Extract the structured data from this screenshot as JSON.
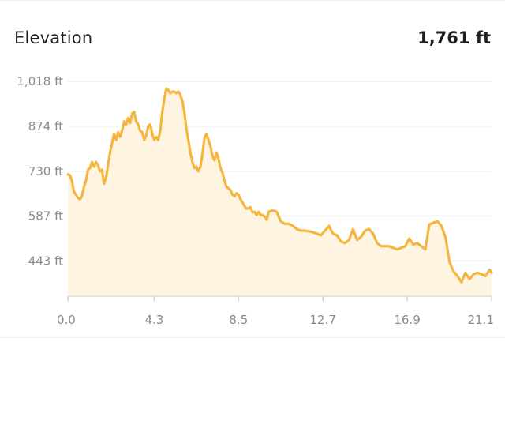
{
  "header": {
    "title": "Elevation",
    "total_elevation": "1,761 ft"
  },
  "colors": {
    "line": "#f4b63f",
    "fill": "#fdf4e2",
    "grid": "#ececec",
    "tick_text": "#8a8a8a"
  },
  "chart_data": {
    "type": "area",
    "title": "Elevation",
    "xlabel": "",
    "ylabel": "",
    "xlim": [
      0,
      21.1
    ],
    "ylim": [
      330,
      1018
    ],
    "x_ticks": [
      {
        "value": 0,
        "label": "0.0"
      },
      {
        "value": 4.3,
        "label": "4.3"
      },
      {
        "value": 8.5,
        "label": "8.5"
      },
      {
        "value": 12.7,
        "label": "12.7"
      },
      {
        "value": 16.9,
        "label": "16.9"
      },
      {
        "value": 21.1,
        "label": "21.1"
      }
    ],
    "y_ticks": [
      {
        "value": 1018,
        "label": "1,018 ft"
      },
      {
        "value": 874,
        "label": "874 ft"
      },
      {
        "value": 730,
        "label": "730 ft"
      },
      {
        "value": 587,
        "label": "587 ft"
      },
      {
        "value": 443,
        "label": "443 ft"
      }
    ],
    "grid": true,
    "series": [
      {
        "name": "",
        "x": [
          0.0,
          0.1,
          0.2,
          0.3,
          0.4,
          0.5,
          0.6,
          0.7,
          0.8,
          0.9,
          1.0,
          1.1,
          1.2,
          1.3,
          1.4,
          1.5,
          1.6,
          1.7,
          1.8,
          1.9,
          2.0,
          2.1,
          2.2,
          2.3,
          2.4,
          2.5,
          2.6,
          2.7,
          2.8,
          2.9,
          3.0,
          3.1,
          3.2,
          3.3,
          3.4,
          3.5,
          3.6,
          3.7,
          3.8,
          3.9,
          4.0,
          4.1,
          4.2,
          4.3,
          4.4,
          4.5,
          4.6,
          4.7,
          4.8,
          4.9,
          5.0,
          5.1,
          5.2,
          5.3,
          5.4,
          5.5,
          5.6,
          5.7,
          5.8,
          5.9,
          6.0,
          6.1,
          6.2,
          6.3,
          6.4,
          6.5,
          6.6,
          6.7,
          6.8,
          6.9,
          7.0,
          7.1,
          7.2,
          7.3,
          7.4,
          7.5,
          7.6,
          7.7,
          7.8,
          7.9,
          8.0,
          8.1,
          8.2,
          8.3,
          8.4,
          8.5,
          8.6,
          8.7,
          8.8,
          8.9,
          9.0,
          9.1,
          9.2,
          9.3,
          9.4,
          9.5,
          9.6,
          9.7,
          9.8,
          9.9,
          10.0,
          10.2,
          10.4,
          10.6,
          10.8,
          11.0,
          11.2,
          11.4,
          11.6,
          11.8,
          12.0,
          12.2,
          12.4,
          12.6,
          12.8,
          13.0,
          13.2,
          13.4,
          13.6,
          13.8,
          14.0,
          14.2,
          14.4,
          14.6,
          14.8,
          15.0,
          15.2,
          15.4,
          15.6,
          15.8,
          16.0,
          16.2,
          16.4,
          16.6,
          16.8,
          17.0,
          17.2,
          17.4,
          17.6,
          17.8,
          18.0,
          18.2,
          18.4,
          18.6,
          18.8,
          19.0,
          19.2,
          19.4,
          19.6,
          19.8,
          20.0,
          20.2,
          20.4,
          20.6,
          20.8,
          21.0,
          21.1
        ],
        "y": [
          720,
          718,
          700,
          665,
          655,
          645,
          640,
          650,
          680,
          700,
          735,
          740,
          760,
          745,
          760,
          750,
          730,
          735,
          690,
          710,
          750,
          790,
          820,
          850,
          830,
          855,
          840,
          860,
          890,
          880,
          900,
          885,
          915,
          920,
          890,
          880,
          860,
          855,
          830,
          845,
          875,
          880,
          850,
          830,
          840,
          830,
          860,
          920,
          960,
          995,
          990,
          980,
          985,
          985,
          980,
          985,
          975,
          955,
          920,
          865,
          830,
          790,
          760,
          740,
          745,
          730,
          745,
          785,
          835,
          850,
          830,
          810,
          780,
          765,
          790,
          770,
          740,
          725,
          700,
          680,
          675,
          670,
          655,
          650,
          660,
          655,
          640,
          630,
          618,
          610,
          612,
          615,
          598,
          600,
          590,
          600,
          590,
          590,
          585,
          575,
          600,
          605,
          600,
          570,
          562,
          562,
          555,
          545,
          540,
          540,
          538,
          535,
          530,
          525,
          540,
          555,
          530,
          525,
          505,
          500,
          510,
          545,
          510,
          520,
          540,
          545,
          530,
          500,
          490,
          490,
          490,
          485,
          480,
          485,
          490,
          515,
          495,
          500,
          490,
          480,
          560,
          565,
          570,
          555,
          520,
          440,
          410,
          395,
          375,
          405,
          385,
          400,
          405,
          400,
          395,
          415,
          405
        ]
      }
    ]
  }
}
